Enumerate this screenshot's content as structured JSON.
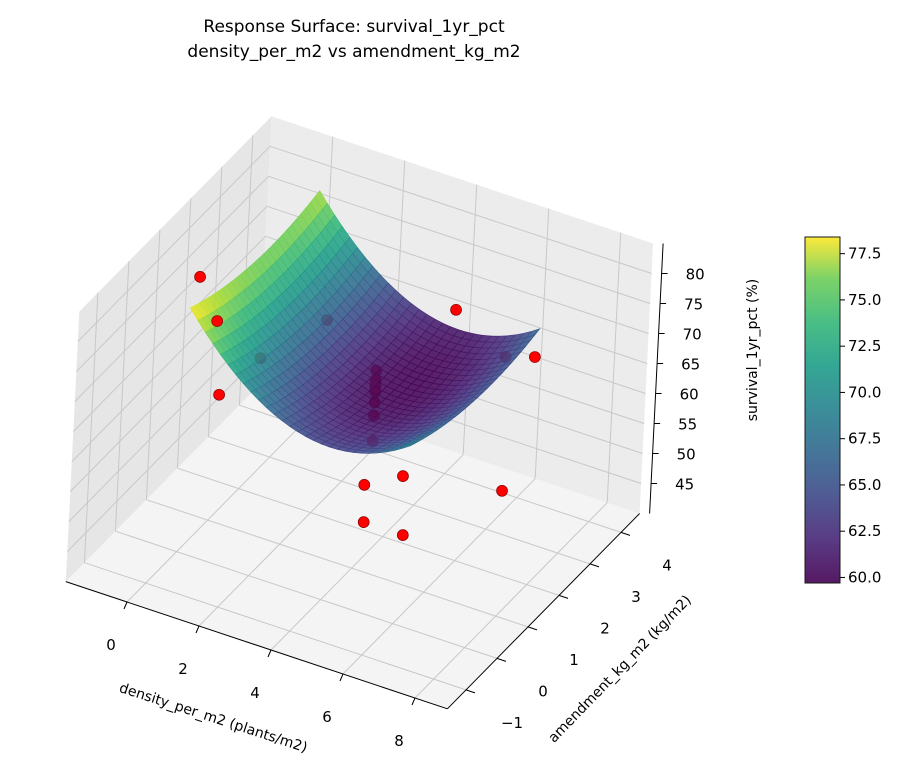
{
  "chart_data": {
    "type": "surface3d",
    "title": "Response Surface: survival_1yr_pct",
    "subtitle": "density_per_m2 vs amendment_kg_m2",
    "xlabel": "density_per_m2 (plants/m2)",
    "ylabel": "amendment_kg_m2 (kg/m2)",
    "zlabel": "survival_1yr_pct (%)",
    "xlim": [
      -1.7,
      8.9
    ],
    "ylim": [
      -1.6,
      4.6
    ],
    "zlim": [
      40,
      85
    ],
    "xticks": [
      "0",
      "2",
      "4",
      "6",
      "8"
    ],
    "yticks": [
      "−1",
      "0",
      "1",
      "2",
      "3",
      "4"
    ],
    "zticks": [
      "45",
      "50",
      "55",
      "60",
      "65",
      "70",
      "75",
      "80"
    ],
    "grid": true,
    "surface": {
      "model": "z = 59.8 + 0.95(x-3.8)^2 + 0.5(y-3)^2",
      "x_range": [
        -0.2,
        6.0
      ],
      "y_range": [
        0.3,
        4.5
      ],
      "colormap": "viridis"
    },
    "points_color": "#ff0000",
    "points": [
      {
        "x": -1.06,
        "y": 1.65,
        "z": 75
      },
      {
        "x": -0.38,
        "y": 1.46,
        "z": 70
      },
      {
        "x": 0.82,
        "y": 1.5,
        "z": 66
      },
      {
        "x": -0.58,
        "y": 1.9,
        "z": 55
      },
      {
        "x": 1.66,
        "y": 2.65,
        "z": 68
      },
      {
        "x": 4.62,
        "y": 3.34,
        "z": 72
      },
      {
        "x": 5.93,
        "y": 3.48,
        "z": 66
      },
      {
        "x": 6.42,
        "y": 3.86,
        "z": 65
      },
      {
        "x": 4.0,
        "y": 1.5,
        "z": 70.3
      },
      {
        "x": 4.0,
        "y": 1.5,
        "z": 68.7
      },
      {
        "x": 4.0,
        "y": 1.5,
        "z": 67.7
      },
      {
        "x": 4.0,
        "y": 1.5,
        "z": 66.8
      },
      {
        "x": 4.0,
        "y": 1.5,
        "z": 65
      },
      {
        "x": 4.0,
        "y": 1.5,
        "z": 62.8
      },
      {
        "x": 4.0,
        "y": 1.5,
        "z": 58.5
      },
      {
        "x": 4.94,
        "y": 1.42,
        "z": 55
      },
      {
        "x": 5.33,
        "y": 1.03,
        "z": 48
      },
      {
        "x": 7.9,
        "y": 1.13,
        "z": 60
      },
      {
        "x": 3.96,
        "y": 1.34,
        "z": 52
      },
      {
        "x": 4.01,
        "y": 1.32,
        "z": 46
      }
    ],
    "colorbar": {
      "range": [
        59.7,
        78.4
      ],
      "ticks": [
        "60.0",
        "62.5",
        "65.0",
        "67.5",
        "70.0",
        "72.5",
        "75.0",
        "77.5"
      ]
    }
  }
}
